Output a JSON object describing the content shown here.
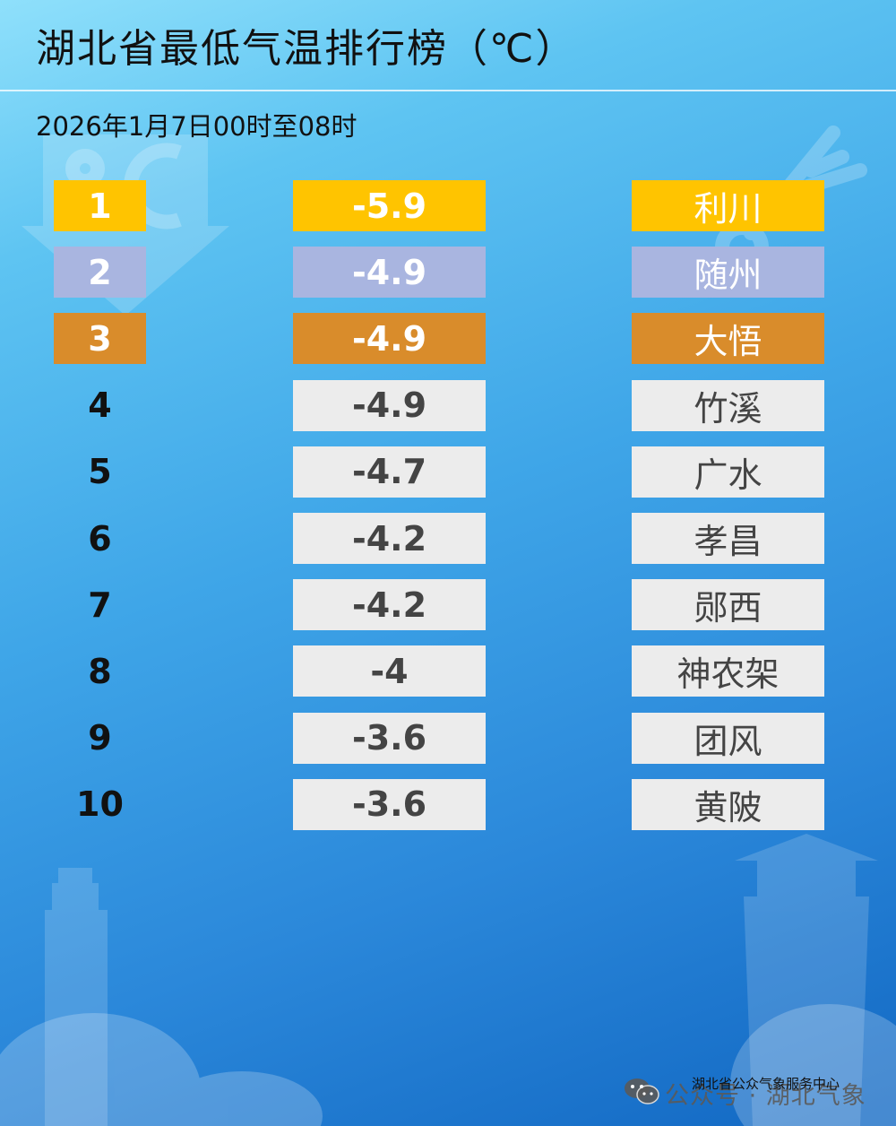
{
  "header": {
    "title": "湖北省最低气温排行榜（℃）",
    "subtitle": "2026年1月7日00时至08时"
  },
  "rows": [
    {
      "rank": "1",
      "value": "-5.9",
      "station": "利川",
      "color": "#ffc400"
    },
    {
      "rank": "2",
      "value": "-4.9",
      "station": "随州",
      "color": "#a9b5e0"
    },
    {
      "rank": "3",
      "value": "-4.9",
      "station": "大悟",
      "color": "#d98c2b"
    },
    {
      "rank": "4",
      "value": "-4.9",
      "station": "竹溪",
      "color": "#ececec"
    },
    {
      "rank": "5",
      "value": "-4.7",
      "station": "广水",
      "color": "#ececec"
    },
    {
      "rank": "6",
      "value": "-4.2",
      "station": "孝昌",
      "color": "#ececec"
    },
    {
      "rank": "7",
      "value": "-4.2",
      "station": "郧西",
      "color": "#ececec"
    },
    {
      "rank": "8",
      "value": "-4",
      "station": "神农架",
      "color": "#ececec"
    },
    {
      "rank": "9",
      "value": "-3.6",
      "station": "团风",
      "color": "#ececec"
    },
    {
      "rank": "10",
      "value": "-3.6",
      "station": "黄陂",
      "color": "#ececec"
    }
  ],
  "footer": {
    "org": "湖北省公众气象服务中心",
    "watermark": "公众号 · 湖北气象",
    "wechat_icon": "wechat-icon"
  },
  "icons": {
    "background_celsius": "celsius-arrow-icon",
    "background_thermometer": "thermometer-icon"
  }
}
